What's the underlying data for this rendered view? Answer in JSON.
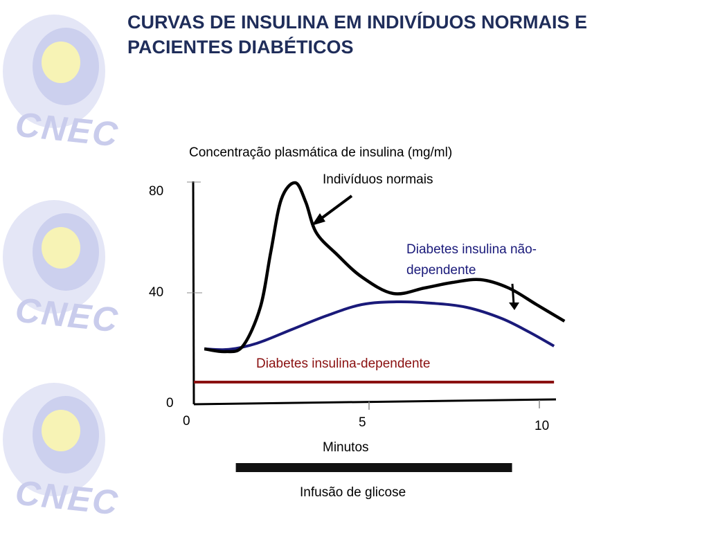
{
  "slide": {
    "title_line1": "CURVAS DE INSULINA EM INDIVÍDUOS NORMAIS E",
    "title_line2": "PACIENTES DIABÉTICOS",
    "logo_text": "CNEC",
    "infusion_label": "Infusão de glicose"
  },
  "colors": {
    "title": "#1f2d5a",
    "normal": "#000000",
    "nid": "#1a1a7a",
    "id": "#8a1010",
    "logo": "#c9ccec"
  },
  "chart_data": {
    "type": "line",
    "ylabel": "Concentração plasmática de insulina (mg/ml)",
    "xlabel": "Minutos",
    "x_ticks": [
      "0",
      "5",
      "10"
    ],
    "y_ticks": [
      "0",
      "40",
      "80"
    ],
    "xlim": [
      0,
      10.5
    ],
    "ylim": [
      0,
      85
    ],
    "annotations": [
      "Indivíduos normais",
      "Diabetes insulina não-dependente",
      "Diabetes insulina-dependente"
    ],
    "glucose_infusion": [
      1.2,
      9.1
    ],
    "series": [
      {
        "name": "Indivíduos normais",
        "x": [
          0.3,
          0.9,
          1.4,
          1.9,
          2.2,
          2.5,
          2.9,
          3.2,
          3.5,
          4.1,
          4.8,
          5.7,
          6.6,
          7.4,
          8.2,
          9.0,
          9.8,
          10.6
        ],
        "y": [
          20,
          19,
          21,
          35,
          55,
          74,
          80,
          73,
          62,
          54,
          46,
          40,
          42,
          44,
          45,
          42,
          36,
          30
        ]
      },
      {
        "name": "Diabetes insulina não-dependente",
        "x": [
          0.3,
          1.0,
          1.8,
          2.8,
          3.8,
          4.8,
          5.8,
          6.8,
          7.8,
          8.8,
          9.6,
          10.3
        ],
        "y": [
          20,
          19.8,
          22,
          27,
          32,
          36,
          37,
          36.5,
          35,
          31,
          26,
          21
        ]
      },
      {
        "name": "Diabetes insulina-dependente",
        "x": [
          0,
          10.3
        ],
        "y": [
          8,
          8
        ]
      }
    ]
  }
}
